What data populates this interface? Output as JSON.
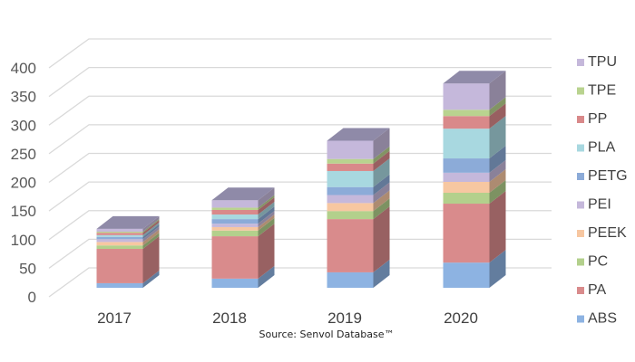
{
  "chart_data": {
    "type": "bar",
    "stacked": true,
    "style": "3d-column",
    "title": "",
    "xlabel": "",
    "ylabel": "",
    "caption": "Source: Senvol Database™",
    "categories": [
      "2017",
      "2018",
      "2019",
      "2020"
    ],
    "ylim": [
      0,
      400
    ],
    "yticks": [
      0,
      50,
      100,
      150,
      200,
      250,
      300,
      350,
      400
    ],
    "grid": true,
    "legend_position": "right",
    "series": [
      {
        "name": "ABS",
        "color": "#8db3e2",
        "values": [
          8,
          16,
          27,
          44
        ]
      },
      {
        "name": "PA",
        "color": "#d98b8c",
        "values": [
          60,
          74,
          93,
          103
        ]
      },
      {
        "name": "PC",
        "color": "#b3d08c",
        "values": [
          6,
          10,
          14,
          19
        ]
      },
      {
        "name": "PEEK",
        "color": "#f7c7a1",
        "values": [
          6,
          6,
          14,
          19
        ]
      },
      {
        "name": "PEI",
        "color": "#c5b8db",
        "values": [
          5,
          6,
          14,
          16
        ]
      },
      {
        "name": "PETG",
        "color": "#8cabd8",
        "values": [
          4,
          8,
          14,
          25
        ]
      },
      {
        "name": "PLA",
        "color": "#a8d8e0",
        "values": [
          3,
          8,
          28,
          52
        ]
      },
      {
        "name": "PP",
        "color": "#d9898a",
        "values": [
          4,
          8,
          13,
          22
        ]
      },
      {
        "name": "TPE",
        "color": "#b9d38f",
        "values": [
          2,
          4,
          8,
          11
        ]
      },
      {
        "name": "TPU",
        "color": "#c5b8db",
        "values": [
          5,
          13,
          32,
          46
        ]
      }
    ]
  }
}
